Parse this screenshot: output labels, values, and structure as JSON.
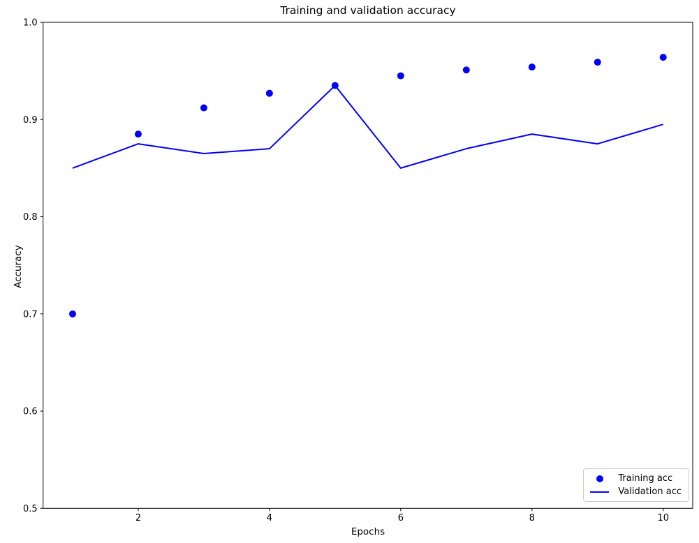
{
  "chart_data": {
    "type": "line+scatter",
    "title": "Training and validation accuracy",
    "xlabel": "Epochs",
    "ylabel": "Accuracy",
    "x": [
      1,
      2,
      3,
      4,
      5,
      6,
      7,
      8,
      9,
      10
    ],
    "series": [
      {
        "name": "Training acc",
        "type": "scatter",
        "marker": "circle",
        "color": "#0000ff",
        "values": [
          0.7,
          0.885,
          0.912,
          0.927,
          0.935,
          0.945,
          0.951,
          0.954,
          0.959,
          0.964
        ]
      },
      {
        "name": "Validation acc",
        "type": "line",
        "color": "#0000ff",
        "values": [
          0.85,
          0.875,
          0.865,
          0.87,
          0.935,
          0.85,
          0.87,
          0.885,
          0.875,
          0.895
        ]
      }
    ],
    "xlim": [
      0.55,
      10.45
    ],
    "ylim": [
      0.5,
      1.0
    ],
    "xticks": [
      "2",
      "4",
      "6",
      "8",
      "10"
    ],
    "yticks": [
      "0.5",
      "0.6",
      "0.7",
      "0.8",
      "0.9",
      "1.0"
    ],
    "grid": false,
    "legend_position": "lower right"
  },
  "colors": {
    "data": "#0000ff",
    "axis": "#000000",
    "background": "#ffffff",
    "legend_border": "#cccccc"
  }
}
